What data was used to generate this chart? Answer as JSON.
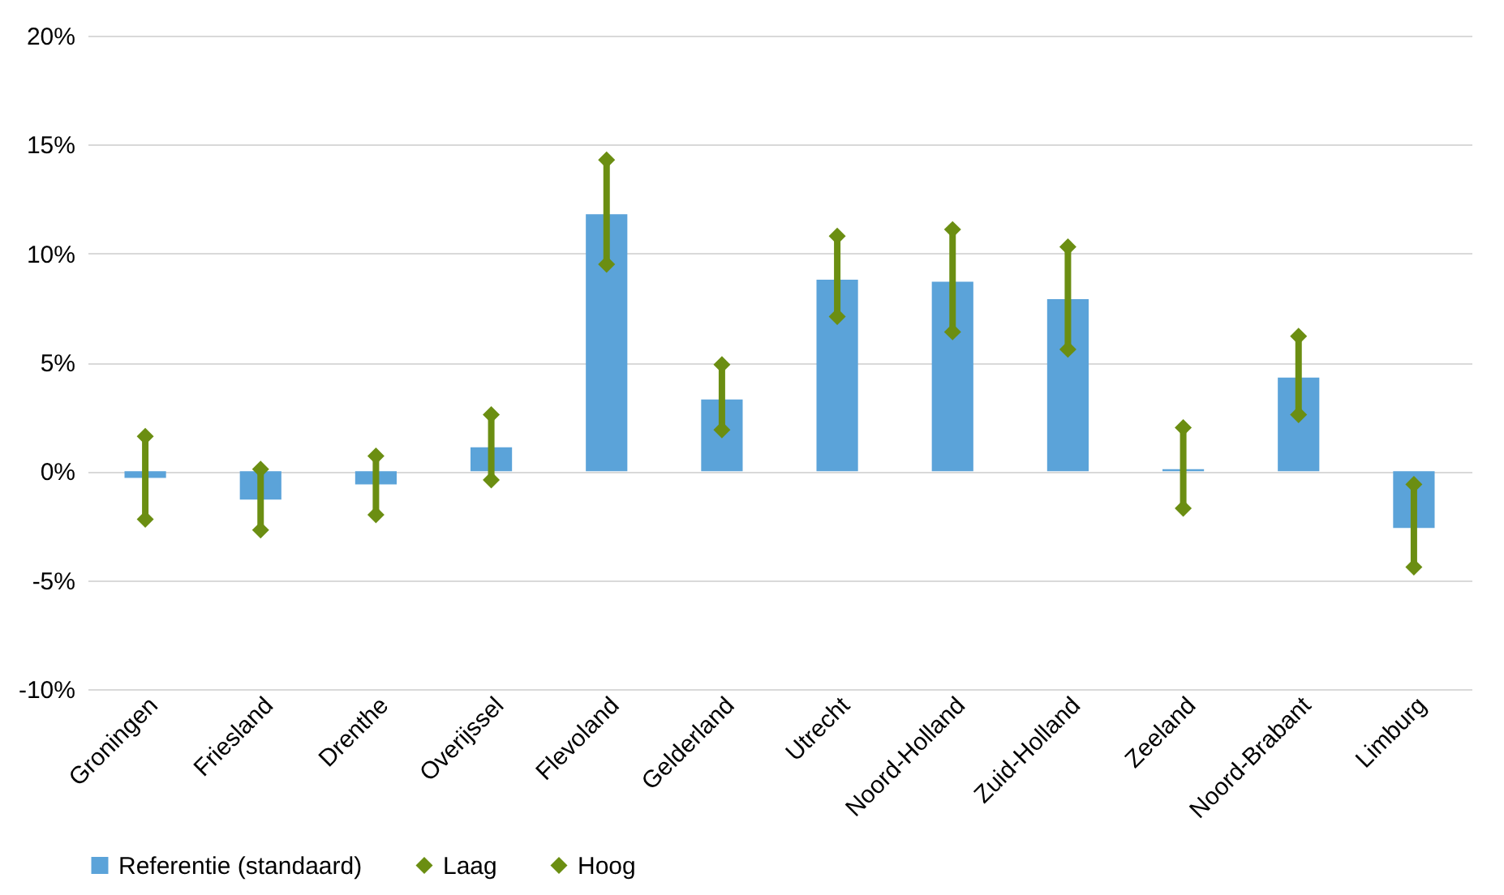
{
  "chart_data": {
    "type": "bar",
    "categories": [
      "Groningen",
      "Friesland",
      "Drenthe",
      "Overijssel",
      "Flevoland",
      "Gelderland",
      "Utrecht",
      "Noord-Holland",
      "Zuid-Holland",
      "Zeeland",
      "Noord-Brabant",
      "Limburg"
    ],
    "series": [
      {
        "name": "Referentie (standaard)",
        "color": "#5ba3d9",
        "values": [
          -0.3,
          -1.3,
          -0.6,
          1.1,
          11.8,
          3.3,
          8.8,
          8.7,
          7.9,
          0.1,
          4.3,
          -2.6
        ]
      },
      {
        "name": "Laag",
        "type": "scatter",
        "color": "#6b8e12",
        "values": [
          -2.2,
          -2.7,
          -2.0,
          -0.4,
          9.5,
          1.9,
          7.1,
          6.4,
          5.6,
          -1.7,
          2.6,
          -4.4
        ]
      },
      {
        "name": "Hoog",
        "type": "scatter",
        "color": "#6b8e12",
        "values": [
          1.6,
          0.1,
          0.7,
          2.6,
          14.3,
          4.9,
          10.8,
          11.1,
          10.3,
          2.0,
          6.2,
          -0.6
        ]
      }
    ],
    "ylim": [
      -10,
      20
    ],
    "yticks": [
      {
        "value": -10,
        "label": "-10%"
      },
      {
        "value": -5,
        "label": "-5%"
      },
      {
        "value": 0,
        "label": "0%"
      },
      {
        "value": 5,
        "label": "5%"
      },
      {
        "value": 10,
        "label": "10%"
      },
      {
        "value": 15,
        "label": "15%"
      },
      {
        "value": 20,
        "label": "20%"
      }
    ],
    "grid": "y",
    "legend": "bottom",
    "marker": "diamond"
  }
}
